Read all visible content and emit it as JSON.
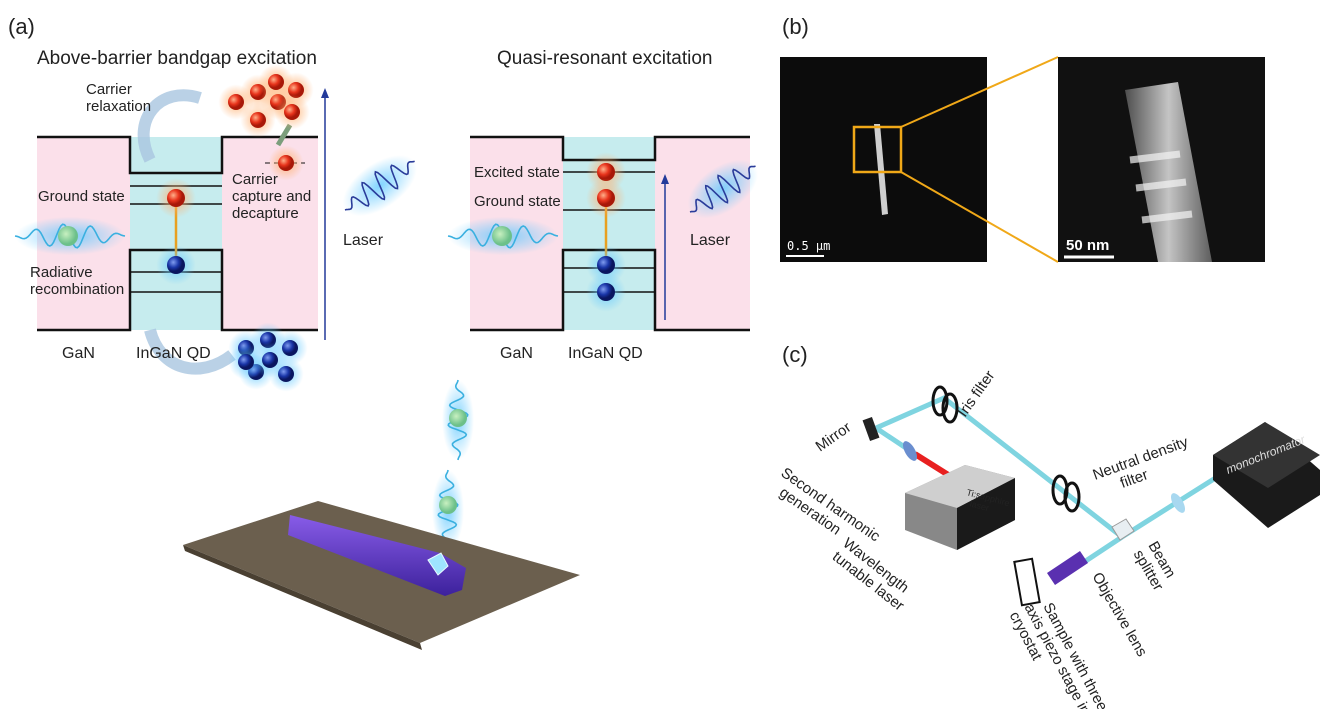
{
  "panel_a": {
    "label": "(a)",
    "left": {
      "title": "Above-barrier bandgap excitation",
      "carrier_relaxation": [
        "Carrier",
        "relaxation"
      ],
      "carrier_capture": [
        "Carrier",
        "capture and",
        "decapture"
      ],
      "ground_state": "Ground state",
      "radiative_recombination": [
        "Radiative",
        "recombination"
      ],
      "laser": "Laser",
      "gan": "GaN",
      "ingan_qd": "InGaN  QD"
    },
    "right": {
      "title": "Quasi-resonant excitation",
      "excited_state": "Excited state",
      "ground_state": "Ground state",
      "laser": "Laser",
      "gan": "GaN",
      "ingan_qd": "InGaN  QD"
    }
  },
  "panel_b": {
    "label": "(b)",
    "scale_left": "0.5 µm",
    "scale_right": "50 nm"
  },
  "panel_c": {
    "label": "(c)",
    "iris_filter": "Iris filter",
    "mirror": "Mirror",
    "neutral_density_filter": [
      "Neutral density",
      "filter"
    ],
    "monochromator": "monochromator",
    "second_harmonic_generation": [
      "Second harmonic",
      "generation"
    ],
    "ti_sapphire_laser": [
      "Ti:sapphire",
      "laser"
    ],
    "wavelength_tunable_laser": [
      "Wavelength",
      "tunable laser"
    ],
    "beam_splitter": [
      "Beam",
      "splitter"
    ],
    "objective_lens": "Objective lens",
    "sample": [
      "Sample with three-",
      "axis piezo stage in",
      "cryostat"
    ]
  }
}
